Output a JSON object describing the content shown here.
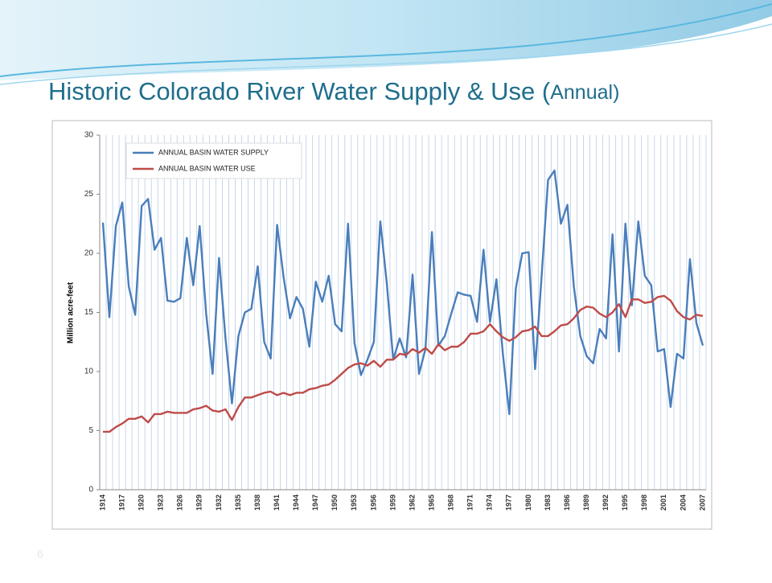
{
  "slide_number": "6",
  "chart_data": {
    "type": "line",
    "title": "Historic Colorado River Water Supply & Use (",
    "title_suffix": "Annual)",
    "y_label": "Million acre-feet",
    "categories": [
      "1914",
      null,
      null,
      "1917",
      null,
      null,
      "1920",
      null,
      null,
      "1923",
      null,
      null,
      "1926",
      null,
      null,
      "1929",
      null,
      null,
      "1932",
      null,
      null,
      "1935",
      null,
      null,
      "1938",
      null,
      null,
      "1941",
      null,
      null,
      "1944",
      null,
      null,
      "1947",
      null,
      null,
      "1950",
      null,
      null,
      "1953",
      null,
      null,
      "1956",
      null,
      null,
      "1959",
      null,
      null,
      "1962",
      null,
      null,
      "1965",
      null,
      null,
      "1968",
      null,
      null,
      "1971",
      null,
      null,
      "1974",
      null,
      null,
      "1977",
      null,
      null,
      "1980",
      null,
      null,
      "1983",
      null,
      null,
      "1986",
      null,
      null,
      "1989",
      null,
      null,
      "1992",
      null,
      null,
      "1995",
      null,
      null,
      "1998",
      null,
      null,
      "2001",
      null,
      null,
      "2004",
      null,
      null,
      "2007"
    ],
    "series": [
      {
        "name": "ANNUAL BASIN WATER SUPPLY",
        "color": "#4a7ebb",
        "values": [
          22.6,
          14.6,
          22.3,
          24.3,
          17.2,
          14.8,
          24.0,
          24.6,
          20.3,
          21.3,
          16.0,
          15.9,
          16.2,
          21.3,
          17.3,
          22.3,
          14.9,
          9.8,
          19.6,
          12.8,
          7.3,
          13.0,
          15.0,
          15.3,
          18.9,
          12.5,
          11.1,
          22.4,
          18.0,
          14.5,
          16.3,
          15.3,
          12.1,
          17.6,
          15.9,
          18.1,
          14.0,
          13.4,
          22.5,
          12.4,
          9.7,
          11.0,
          12.5,
          22.7,
          17.5,
          11.0,
          12.8,
          11.2,
          18.2,
          9.8,
          11.9,
          21.8,
          12.2,
          13.0,
          14.9,
          16.7,
          16.5,
          16.4,
          14.2,
          20.3,
          14.2,
          17.8,
          11.5,
          6.4,
          17.0,
          20.0,
          20.1,
          10.2,
          18.0,
          26.2,
          27.0,
          22.5,
          24.1,
          17.2,
          13.0,
          11.3,
          10.7,
          13.6,
          12.8,
          21.6,
          11.7,
          22.5,
          15.6,
          22.7,
          18.1,
          17.3,
          11.7,
          11.9,
          7.0,
          11.5,
          11.1,
          19.5,
          14.1,
          12.2
        ]
      },
      {
        "name": "ANNUAL BASIN WATER USE",
        "color": "#be4b48",
        "values": [
          4.9,
          4.9,
          5.3,
          5.6,
          6.0,
          6.0,
          6.2,
          5.7,
          6.4,
          6.4,
          6.6,
          6.5,
          6.5,
          6.5,
          6.8,
          6.9,
          7.1,
          6.7,
          6.6,
          6.8,
          5.9,
          7.0,
          7.8,
          7.8,
          8.0,
          8.2,
          8.3,
          8.0,
          8.2,
          8.0,
          8.2,
          8.2,
          8.5,
          8.6,
          8.8,
          8.9,
          9.3,
          9.8,
          10.3,
          10.6,
          10.7,
          10.5,
          10.9,
          10.4,
          11.0,
          11.0,
          11.5,
          11.4,
          11.9,
          11.6,
          12.0,
          11.5,
          12.3,
          11.8,
          12.1,
          12.1,
          12.5,
          13.2,
          13.2,
          13.4,
          14.0,
          13.4,
          12.9,
          12.6,
          12.9,
          13.4,
          13.5,
          13.8,
          13.0,
          13.0,
          13.4,
          13.9,
          14.0,
          14.5,
          15.2,
          15.5,
          15.4,
          14.9,
          14.6,
          15.0,
          15.7,
          14.6,
          16.1,
          16.1,
          15.8,
          15.9,
          16.3,
          16.4,
          16.0,
          15.1,
          14.6,
          14.4,
          14.8,
          14.7
        ]
      }
    ],
    "ylim": [
      0,
      30
    ],
    "yticks": [
      0,
      5,
      10,
      15,
      20,
      25,
      30
    ],
    "legend": "upper left"
  }
}
